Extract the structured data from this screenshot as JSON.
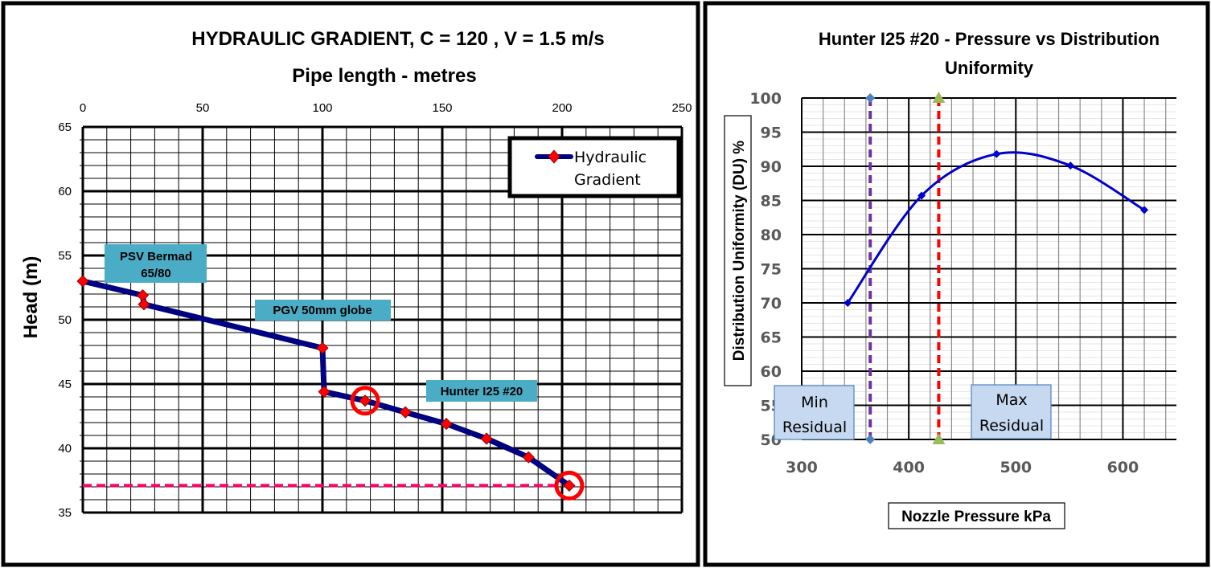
{
  "chart_data": [
    {
      "type": "line",
      "title": "HYDRAULIC GRADIENT,  C = 120 ,  V = 1.5 m/s",
      "xlabel": "Pipe length - metres",
      "ylabel": "Head (m)",
      "xlim": [
        0,
        250
      ],
      "ylim": [
        35,
        65
      ],
      "x_ticks": [
        "0",
        "50",
        "100",
        "150",
        "200",
        "250"
      ],
      "y_ticks": [
        "35",
        "40",
        "45",
        "50",
        "55",
        "60",
        "65"
      ],
      "x_axis_position": "top",
      "grid": true,
      "legend": {
        "position": "top-right",
        "entries": [
          "Hydraulic",
          "Gradient"
        ]
      },
      "series": [
        {
          "name": "Hydraulic Gradient",
          "color": "#000080",
          "marker_color": "#ff0000",
          "x": [
            0,
            25,
            25.5,
            100,
            100.7,
            117.8,
            134.6,
            151.7,
            168.5,
            186,
            203
          ],
          "y": [
            53,
            51.9,
            51.2,
            47.8,
            44.4,
            43.7,
            42.8,
            41.9,
            40.75,
            39.3,
            37.1
          ]
        }
      ],
      "reference_line": {
        "y": 37.1,
        "color": "#ff0066",
        "style": "dashed"
      },
      "highlighted_points": [
        {
          "x": 117.8,
          "y": 43.7
        },
        {
          "x": 203,
          "y": 37.1
        }
      ],
      "annotations": [
        {
          "lines": [
            "PSV Bermad",
            "65/80"
          ]
        },
        {
          "lines": [
            "PGV 50mm globe"
          ]
        },
        {
          "lines": [
            "Hunter I25 #20"
          ]
        }
      ],
      "annotation_color": "#4bacc6"
    },
    {
      "type": "line",
      "title_lines": [
        "Hunter I25 #20 - Pressure vs Distribution",
        "Uniformity"
      ],
      "xlabel": "Nozzle Pressure kPa",
      "ylabel": "Distribution Uniformity (DU) %",
      "xlim": [
        300,
        650
      ],
      "ylim": [
        50,
        100
      ],
      "x_ticks": [
        "300",
        "400",
        "500",
        "600"
      ],
      "y_ticks": [
        "50",
        "55",
        "60",
        "65",
        "70",
        "75",
        "80",
        "85",
        "90",
        "95",
        "100"
      ],
      "grid": true,
      "series": [
        {
          "color": "#0000cc",
          "smooth": true,
          "x": [
            343,
            412,
            482,
            551,
            620
          ],
          "y": [
            70,
            85.7,
            91.8,
            90.1,
            83.6
          ]
        }
      ],
      "vertical_lines": [
        {
          "x": 364,
          "color": "#7030a0",
          "marker_color": "#4f81bd",
          "marker": "diamond"
        },
        {
          "x": 428,
          "color": "#ff0000",
          "marker_color": "#9bbb59",
          "marker": "triangle"
        }
      ],
      "annotations": [
        {
          "lines": [
            "Min",
            "Residual"
          ]
        },
        {
          "lines": [
            "Max",
            "Residual"
          ]
        }
      ],
      "annotation_color": "#c6d9f1"
    }
  ]
}
